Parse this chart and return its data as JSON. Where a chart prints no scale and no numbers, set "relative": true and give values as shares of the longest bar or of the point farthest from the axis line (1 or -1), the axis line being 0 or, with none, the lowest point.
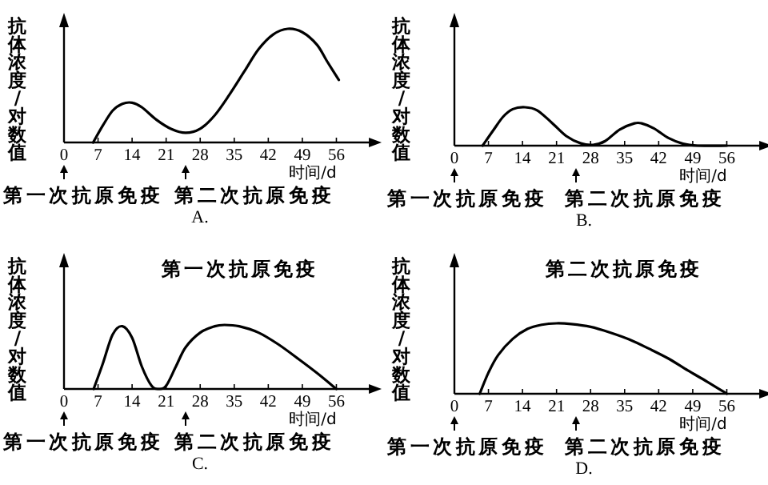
{
  "chart_data": [
    {
      "type": "line",
      "title": "A.",
      "xlabel": "时间/d",
      "ylabel": "抗体浓度/对数值",
      "relative": true,
      "color": "#000000",
      "xlim": [
        0,
        63
      ],
      "xticks": [
        0,
        7,
        14,
        21,
        28,
        35,
        42,
        49,
        56
      ],
      "x": [
        6,
        8,
        10,
        12,
        14,
        16,
        19,
        22,
        25,
        28,
        31,
        34,
        37,
        40,
        43,
        46,
        49,
        52,
        54,
        56.5
      ],
      "values": [
        0,
        0.15,
        0.28,
        0.34,
        0.35,
        0.31,
        0.2,
        0.12,
        0.085,
        0.12,
        0.24,
        0.42,
        0.62,
        0.82,
        0.95,
        1,
        0.97,
        0.86,
        0.72,
        0.55
      ],
      "annotations": [
        "第一次抗原免疫",
        "第二次抗原免疫"
      ]
    },
    {
      "type": "line",
      "title": "B.",
      "xlabel": "时间/d",
      "ylabel": "抗体浓度/对数值",
      "relative": true,
      "color": "#000000",
      "xlim": [
        0,
        63
      ],
      "xticks": [
        0,
        7,
        14,
        21,
        28,
        35,
        42,
        49,
        56
      ],
      "x": [
        5.8,
        8,
        10,
        12,
        14.5,
        17,
        20,
        23,
        26,
        28.5,
        31,
        34,
        37,
        38.5,
        41,
        44,
        47,
        50,
        56
      ],
      "values": [
        0,
        0.4,
        0.75,
        0.95,
        1,
        0.92,
        0.6,
        0.25,
        0.06,
        0.02,
        0.12,
        0.42,
        0.58,
        0.58,
        0.45,
        0.2,
        0.05,
        0,
        0
      ],
      "annotations": [
        "第一次抗原免疫",
        "第二次抗原免疫"
      ]
    },
    {
      "type": "line",
      "title": "C.",
      "xlabel": "时间/d",
      "ylabel": "抗体浓度/对数值",
      "relative": true,
      "color": "#000000",
      "xlim": [
        0,
        63
      ],
      "xticks": [
        0,
        7,
        14,
        21,
        28,
        35,
        42,
        49,
        56
      ],
      "x": [
        6.1,
        8,
        10,
        12,
        14,
        16,
        18,
        19.5,
        21,
        23,
        25,
        28,
        31,
        33,
        36,
        40,
        44,
        48,
        52,
        56
      ],
      "values": [
        0,
        0.4,
        0.85,
        0.98,
        0.8,
        0.35,
        0.05,
        0,
        0.05,
        0.35,
        0.65,
        0.88,
        0.98,
        1,
        0.98,
        0.88,
        0.7,
        0.48,
        0.25,
        0
      ],
      "annotations": [
        "第一次抗原免疫",
        "第一次抗原免疫",
        "第二次抗原免疫"
      ]
    },
    {
      "type": "line",
      "title": "D.",
      "xlabel": "时间/d",
      "ylabel": "抗体浓度/对数值",
      "relative": true,
      "color": "#000000",
      "xlim": [
        0,
        63
      ],
      "xticks": [
        0,
        7,
        14,
        21,
        28,
        35,
        42,
        49,
        56
      ],
      "x": [
        5.2,
        7,
        9,
        12,
        15,
        18,
        21,
        24,
        28,
        32,
        36,
        40,
        44,
        48,
        52,
        56
      ],
      "values": [
        0,
        0.3,
        0.55,
        0.78,
        0.92,
        0.98,
        1,
        0.99,
        0.95,
        0.87,
        0.77,
        0.64,
        0.5,
        0.33,
        0.17,
        0
      ],
      "annotations": [
        "第二次抗原免疫",
        "第一次抗原免疫",
        "第二次抗原免疫"
      ]
    }
  ]
}
